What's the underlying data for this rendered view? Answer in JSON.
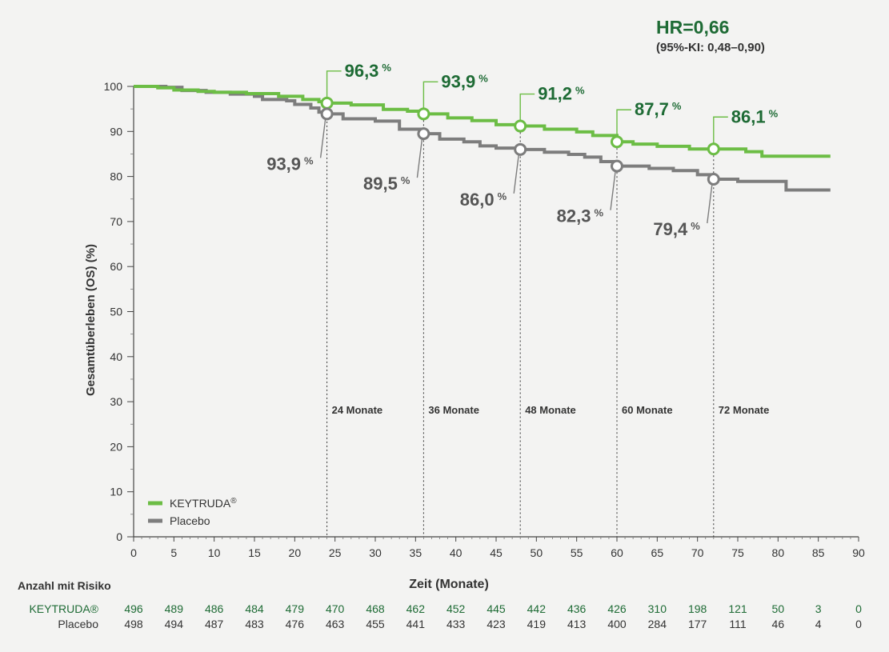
{
  "chart_data": {
    "type": "line",
    "title": "",
    "hr_label": "HR=0,66",
    "ci_label": "(95%-KI: 0,48–0,90)",
    "xlabel": "Zeit (Monate)",
    "ylabel": "Gesamtüberleben (OS) (%)",
    "xlim": [
      0,
      90
    ],
    "ylim": [
      0,
      100
    ],
    "x_ticks": [
      "0",
      "5",
      "10",
      "15",
      "20",
      "25",
      "30",
      "35",
      "40",
      "45",
      "50",
      "55",
      "60",
      "65",
      "70",
      "75",
      "80",
      "85",
      "90"
    ],
    "y_ticks": [
      "0",
      "10",
      "20",
      "30",
      "40",
      "50",
      "60",
      "70",
      "80",
      "90",
      "100"
    ],
    "colors": {
      "keytruda": "#6cbd45",
      "placebo": "#7d7d7d",
      "label_green": "#1e6b35",
      "label_gray": "#555555"
    },
    "series": [
      {
        "name": "KEYTRUDA®",
        "key": "keytruda",
        "steps": [
          [
            0,
            100
          ],
          [
            3,
            99.7
          ],
          [
            5,
            99.2
          ],
          [
            8,
            98.9
          ],
          [
            10,
            98.7
          ],
          [
            14,
            98.4
          ],
          [
            18,
            97.8
          ],
          [
            21,
            97.1
          ],
          [
            23,
            96.6
          ],
          [
            24,
            96.3
          ],
          [
            27,
            95.9
          ],
          [
            31,
            94.9
          ],
          [
            34,
            94.5
          ],
          [
            36,
            93.9
          ],
          [
            39,
            93.0
          ],
          [
            42,
            92.4
          ],
          [
            45,
            91.5
          ],
          [
            48,
            91.2
          ],
          [
            51,
            90.5
          ],
          [
            55,
            89.9
          ],
          [
            57,
            89.1
          ],
          [
            60,
            87.7
          ],
          [
            62,
            87.2
          ],
          [
            65,
            86.7
          ],
          [
            69,
            86.1
          ],
          [
            72,
            86.1
          ],
          [
            76,
            85.5
          ],
          [
            78,
            84.5
          ],
          [
            86.5,
            84.5
          ]
        ],
        "markers": [
          {
            "x": 24,
            "y": 96.3,
            "label": "96,3"
          },
          {
            "x": 36,
            "y": 93.9,
            "label": "93,9"
          },
          {
            "x": 48,
            "y": 91.2,
            "label": "91,2"
          },
          {
            "x": 60,
            "y": 87.7,
            "label": "87,7"
          },
          {
            "x": 72,
            "y": 86.1,
            "label": "86,1"
          }
        ]
      },
      {
        "name": "Placebo",
        "key": "placebo",
        "steps": [
          [
            0,
            100
          ],
          [
            4,
            99.8
          ],
          [
            6,
            99.1
          ],
          [
            9,
            98.7
          ],
          [
            12,
            98.3
          ],
          [
            15,
            97.8
          ],
          [
            16,
            97.1
          ],
          [
            19,
            96.8
          ],
          [
            20,
            96.0
          ],
          [
            22,
            95.2
          ],
          [
            23,
            94.3
          ],
          [
            24,
            93.9
          ],
          [
            26,
            92.8
          ],
          [
            30,
            92.3
          ],
          [
            33,
            90.5
          ],
          [
            36,
            89.5
          ],
          [
            38,
            88.3
          ],
          [
            41,
            87.7
          ],
          [
            43,
            86.8
          ],
          [
            45,
            86.3
          ],
          [
            48,
            86.0
          ],
          [
            51,
            85.4
          ],
          [
            54,
            84.9
          ],
          [
            56,
            84.3
          ],
          [
            58,
            83.3
          ],
          [
            60,
            82.3
          ],
          [
            64,
            81.8
          ],
          [
            67,
            81.3
          ],
          [
            70,
            80.4
          ],
          [
            72,
            79.4
          ],
          [
            75,
            78.9
          ],
          [
            81,
            77.0
          ],
          [
            86.5,
            77.0
          ]
        ],
        "markers": [
          {
            "x": 24,
            "y": 93.9,
            "label": "93,9"
          },
          {
            "x": 36,
            "y": 89.5,
            "label": "89,5"
          },
          {
            "x": 48,
            "y": 86.0,
            "label": "86,0"
          },
          {
            "x": 60,
            "y": 82.3,
            "label": "82,3"
          },
          {
            "x": 72,
            "y": 79.4,
            "label": "79,4"
          }
        ]
      }
    ],
    "percent_unit": "%",
    "milestones": [
      {
        "x": 24,
        "label": "24 Monate"
      },
      {
        "x": 36,
        "label": "36 Monate"
      },
      {
        "x": 48,
        "label": "48 Monate"
      },
      {
        "x": 60,
        "label": "60 Monate"
      },
      {
        "x": 72,
        "label": "72 Monate"
      }
    ],
    "legend": [
      {
        "label": "KEYTRUDA",
        "superscript": "®",
        "key": "keytruda"
      },
      {
        "label": "Placebo",
        "superscript": "",
        "key": "placebo"
      }
    ],
    "risk_table": {
      "title": "Anzahl mit Risiko",
      "rows": [
        {
          "label": "KEYTRUDA®",
          "key": "keytruda",
          "values": [
            "496",
            "489",
            "486",
            "484",
            "479",
            "470",
            "468",
            "462",
            "452",
            "445",
            "442",
            "436",
            "426",
            "310",
            "198",
            "121",
            "50",
            "3",
            "0"
          ]
        },
        {
          "label": "Placebo",
          "key": "placebo",
          "values": [
            "498",
            "494",
            "487",
            "483",
            "476",
            "463",
            "455",
            "441",
            "433",
            "423",
            "419",
            "413",
            "400",
            "284",
            "177",
            "111",
            "46",
            "4",
            "0"
          ]
        }
      ]
    }
  }
}
